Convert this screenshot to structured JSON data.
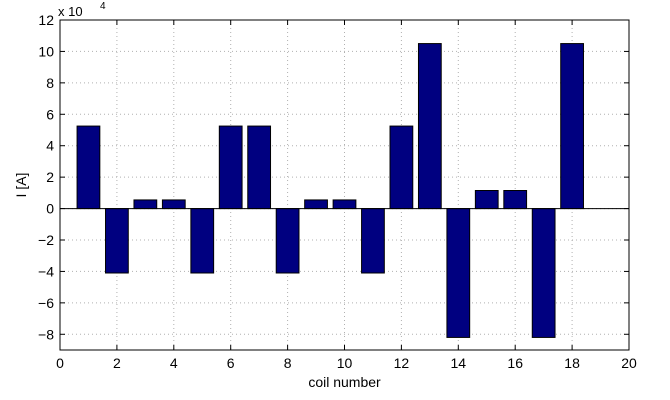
{
  "chart_data": {
    "type": "bar",
    "xlabel": "coil number",
    "ylabel": "I [A]",
    "y_multiplier_label": {
      "base": "x 10",
      "exponent": "4"
    },
    "xlim": [
      0,
      20
    ],
    "ylim": [
      -9,
      12
    ],
    "xticks": [
      0,
      2,
      4,
      6,
      8,
      10,
      12,
      14,
      16,
      18,
      20
    ],
    "yticks": [
      -8,
      -6,
      -4,
      -2,
      0,
      2,
      4,
      6,
      8,
      10,
      12
    ],
    "grid": true,
    "bar_color": "#000080",
    "bar_width": 0.8,
    "x": [
      1,
      2,
      3,
      4,
      5,
      6,
      7,
      8,
      9,
      10,
      11,
      12,
      13,
      14,
      15,
      16,
      17,
      18
    ],
    "values": [
      5.25,
      -4.1,
      0.55,
      0.55,
      -4.1,
      5.25,
      5.25,
      -4.1,
      0.55,
      0.55,
      -4.1,
      5.25,
      10.5,
      -8.2,
      1.15,
      1.15,
      -8.2,
      10.5
    ]
  }
}
